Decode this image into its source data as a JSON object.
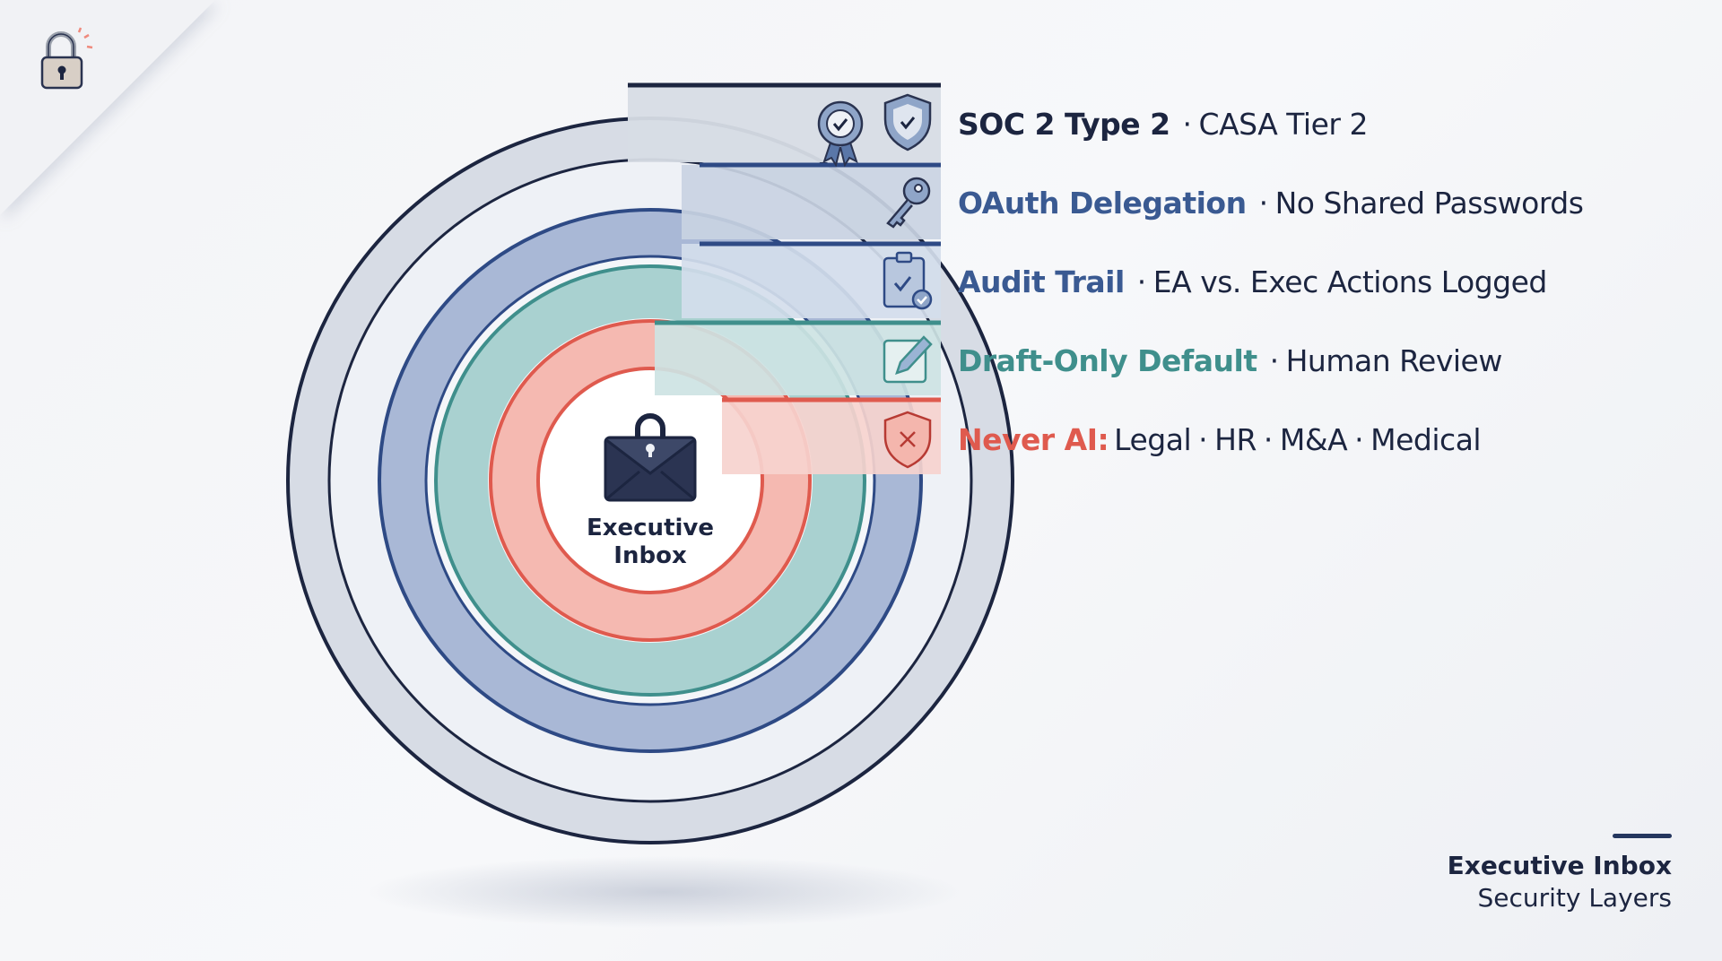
{
  "center": {
    "title_line1": "Executive",
    "title_line2": "Inbox"
  },
  "layers": [
    {
      "title": "SOC 2 Type 2",
      "detail": "CASA Tier 2",
      "color": "#1c2540",
      "icons": [
        "award-badge-icon",
        "shield-check-icon"
      ]
    },
    {
      "title": "OAuth Delegation",
      "detail": "No Shared Passwords",
      "color": "#3a5a92",
      "icons": [
        "key-icon"
      ]
    },
    {
      "title": "Audit Trail",
      "detail": "EA vs. Exec Actions Logged",
      "color": "#3a5a92",
      "icons": [
        "clipboard-check-icon"
      ]
    },
    {
      "title": "Draft-Only Default",
      "detail": "Human Review",
      "color": "#3f8f8c",
      "icons": [
        "edit-pencil-icon"
      ]
    },
    {
      "title": "Never AI:",
      "detail_parts": [
        "Legal",
        "HR",
        "M&A",
        "Medical"
      ],
      "color": "#df5a4e",
      "icons": [
        "shield-x-icon"
      ]
    }
  ],
  "separator": "·",
  "caption": {
    "line1": "Executive Inbox",
    "line2": "Security Layers"
  },
  "colors": {
    "navy": "#1c2540",
    "blue": "#3a5a92",
    "teal": "#3f8f8c",
    "red": "#df5a4e",
    "gray_ring": "#d7dce5"
  }
}
